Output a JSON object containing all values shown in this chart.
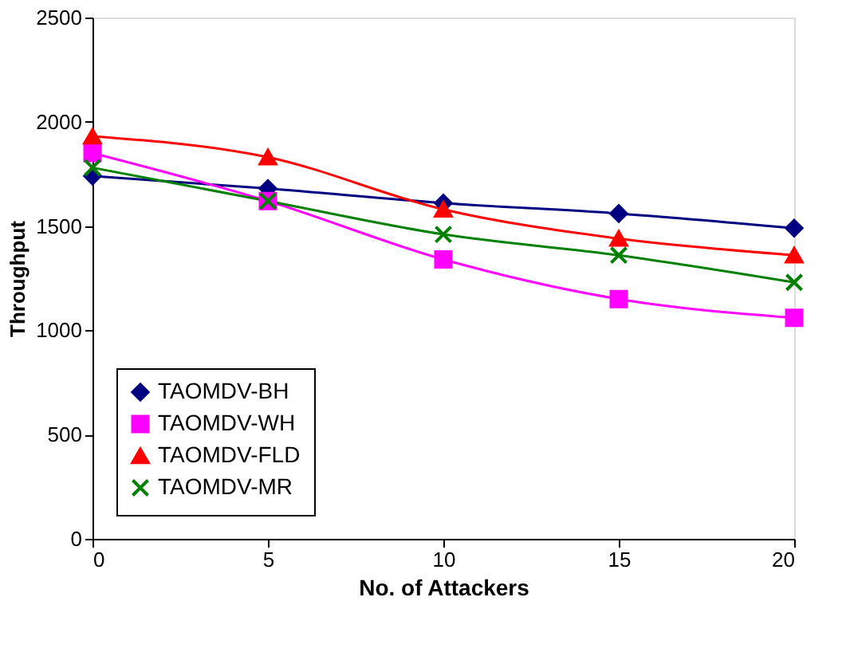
{
  "chart_data": {
    "type": "line",
    "xlabel": "No. of Attackers",
    "ylabel": "Throughput",
    "x": [
      0,
      5,
      10,
      15,
      20
    ],
    "xlim": [
      0,
      20
    ],
    "xticks": [
      0,
      5,
      10,
      15,
      20
    ],
    "ylim": [
      0,
      2500
    ],
    "yticks": [
      0,
      500,
      1000,
      1500,
      2000,
      2500
    ],
    "grid": false,
    "legend": "bottom left",
    "line_style": "solid",
    "series": [
      {
        "name": "TAOMDV-BH",
        "color": "#000080",
        "marker": "diamond",
        "values": [
          1740,
          1680,
          1610,
          1560,
          1490
        ]
      },
      {
        "name": "TAOMDV-WH",
        "color": "#ff00ff",
        "marker": "square",
        "values": [
          1850,
          1620,
          1340,
          1150,
          1060
        ]
      },
      {
        "name": "TAOMDV-FLD",
        "color": "#ff0000",
        "marker": "triangle",
        "values": [
          1930,
          1830,
          1580,
          1440,
          1360
        ]
      },
      {
        "name": "TAOMDV-MR",
        "color": "#008000",
        "marker": "cross",
        "values": [
          1780,
          1620,
          1460,
          1360,
          1230
        ]
      }
    ]
  }
}
